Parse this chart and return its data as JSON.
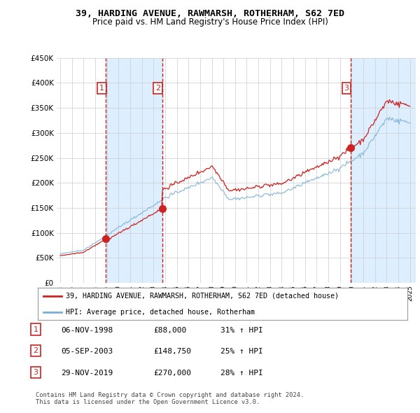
{
  "title": "39, HARDING AVENUE, RAWMARSH, ROTHERHAM, S62 7ED",
  "subtitle": "Price paid vs. HM Land Registry's House Price Index (HPI)",
  "ylim": [
    0,
    450000
  ],
  "yticks": [
    0,
    50000,
    100000,
    150000,
    200000,
    250000,
    300000,
    350000,
    400000,
    450000
  ],
  "bg_color": "#ffffff",
  "plot_bg_color": "#ffffff",
  "grid_color": "#cccccc",
  "sale_color": "#cc2222",
  "hpi_color": "#7bafd4",
  "shade_color": "#ddeeff",
  "sale_points": [
    {
      "date_num": 1998.92,
      "price": 88000,
      "label": "1"
    },
    {
      "date_num": 2003.75,
      "price": 148750,
      "label": "2"
    },
    {
      "date_num": 2019.92,
      "price": 270000,
      "label": "3"
    }
  ],
  "legend_sale_label": "39, HARDING AVENUE, RAWMARSH, ROTHERHAM, S62 7ED (detached house)",
  "legend_hpi_label": "HPI: Average price, detached house, Rotherham",
  "table_rows": [
    {
      "num": "1",
      "date": "06-NOV-1998",
      "price": "£88,000",
      "hpi": "31% ↑ HPI"
    },
    {
      "num": "2",
      "date": "05-SEP-2003",
      "price": "£148,750",
      "hpi": "25% ↑ HPI"
    },
    {
      "num": "3",
      "date": "29-NOV-2019",
      "price": "£270,000",
      "hpi": "28% ↑ HPI"
    }
  ],
  "footer": "Contains HM Land Registry data © Crown copyright and database right 2024.\nThis data is licensed under the Open Government Licence v3.0.",
  "xtick_years": [
    1995,
    1996,
    1997,
    1998,
    1999,
    2000,
    2001,
    2002,
    2003,
    2004,
    2005,
    2006,
    2007,
    2008,
    2009,
    2010,
    2011,
    2012,
    2013,
    2014,
    2015,
    2016,
    2017,
    2018,
    2019,
    2020,
    2021,
    2022,
    2023,
    2024,
    2025
  ],
  "xmin": 1994.7,
  "xmax": 2025.5
}
